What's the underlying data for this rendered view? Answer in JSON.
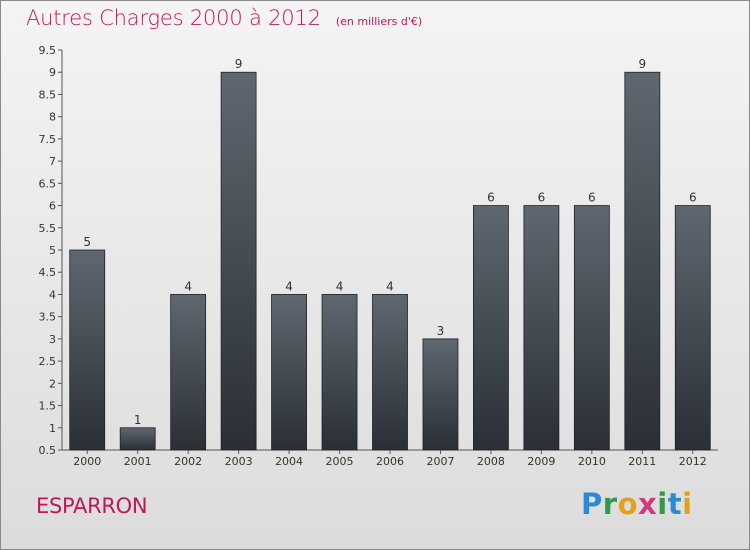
{
  "title": "Autres Charges 2000 à 2012",
  "subtitle": "(en milliers d'€)",
  "town": "ESPARRON",
  "logo": [
    "P",
    "r",
    "o",
    "x",
    "i",
    "t",
    "i"
  ],
  "colors": {
    "accent": "#c0175a",
    "bar_top": "#5f6770",
    "bar_bottom": "#2a2f35"
  },
  "chart_data": {
    "type": "bar",
    "categories": [
      "2000",
      "2001",
      "2002",
      "2003",
      "2004",
      "2005",
      "2006",
      "2007",
      "2008",
      "2009",
      "2010",
      "2011",
      "2012"
    ],
    "values": [
      5,
      1,
      4,
      9,
      4,
      4,
      4,
      3,
      6,
      6,
      6,
      9,
      6
    ],
    "data_labels": [
      "5",
      "1",
      "4",
      "9",
      "4",
      "4",
      "4",
      "3",
      "6",
      "6",
      "6",
      "9",
      "6"
    ],
    "ylim": [
      0.5,
      9.5
    ],
    "yticks": [
      "0.5",
      "1",
      "1.5",
      "2",
      "2.5",
      "3",
      "3.5",
      "4",
      "4.5",
      "5",
      "5.5",
      "6",
      "6.5",
      "7",
      "7.5",
      "8",
      "8.5",
      "9",
      "9.5"
    ],
    "grid": false,
    "legend": "none"
  }
}
